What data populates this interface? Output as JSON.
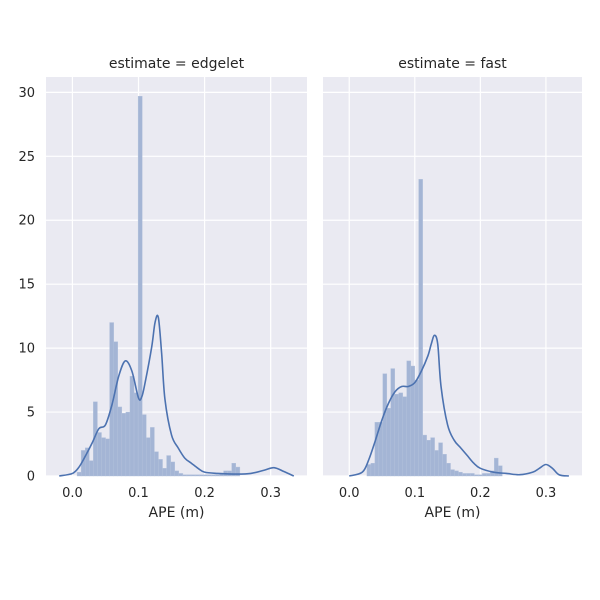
{
  "chart_data": {
    "type": "histogram_kde",
    "shared_y": true,
    "ylim": [
      0,
      31.2
    ],
    "yticks": [
      0,
      5,
      10,
      15,
      20,
      25,
      30
    ],
    "xlim": [
      -0.04,
      0.355
    ],
    "xticks": [
      0.0,
      0.1,
      0.2,
      0.3
    ],
    "xtick_labels": [
      "0.0",
      "0.1",
      "0.2",
      "0.3"
    ],
    "ytick_labels": [
      "0",
      "5",
      "10",
      "15",
      "20",
      "25",
      "30"
    ],
    "xlabel": "APE (m)",
    "ylabel": "",
    "grid": true,
    "colors": {
      "background": "#eaeaf2",
      "grid": "#ffffff",
      "bar": "#a4b5d5",
      "line": "#4c72b0"
    },
    "panels": [
      {
        "title": "estimate = edgelet",
        "bin_start": 0.007,
        "bin_width": 0.00616,
        "bars": [
          0.3,
          2.0,
          2.2,
          1.2,
          5.8,
          3.4,
          3.0,
          2.9,
          12.0,
          10.5,
          5.4,
          4.9,
          5.0,
          7.8,
          6.5,
          29.7,
          4.8,
          3.0,
          3.8,
          1.9,
          1.3,
          0.6,
          1.6,
          1.1,
          0.4,
          0.2,
          0.1,
          0.1,
          0.1,
          0.1,
          0.1,
          0.1,
          0.1,
          0.1,
          0.1,
          0.2,
          0.4,
          0.4,
          1.0,
          0.7
        ],
        "kde": {
          "x": [
            -0.02,
            0.0,
            0.01,
            0.02,
            0.03,
            0.04,
            0.05,
            0.06,
            0.07,
            0.08,
            0.09,
            0.1,
            0.105,
            0.11,
            0.12,
            0.125,
            0.13,
            0.135,
            0.14,
            0.15,
            0.16,
            0.17,
            0.18,
            0.19,
            0.2,
            0.22,
            0.25,
            0.27,
            0.29,
            0.305,
            0.32,
            0.335
          ],
          "y": [
            0.0,
            0.2,
            0.7,
            1.6,
            2.6,
            3.7,
            4.0,
            5.6,
            7.8,
            9.0,
            8.2,
            6.1,
            6.2,
            7.3,
            10.1,
            12.0,
            12.4,
            9.6,
            6.0,
            3.2,
            2.2,
            1.4,
            1.0,
            0.6,
            0.3,
            0.2,
            0.15,
            0.2,
            0.45,
            0.65,
            0.35,
            0.0
          ]
        }
      },
      {
        "title": "estimate = fast",
        "bin_start": 0.027,
        "bin_width": 0.00607,
        "bars": [
          0.9,
          1.0,
          4.2,
          4.2,
          8.0,
          5.3,
          8.4,
          6.4,
          6.5,
          6.2,
          9.0,
          8.6,
          7.5,
          23.2,
          3.2,
          2.8,
          3.0,
          2.0,
          2.6,
          1.7,
          1.0,
          0.5,
          0.4,
          0.3,
          0.2,
          0.2,
          0.2,
          0.1,
          0.1,
          0.2,
          0.2,
          0.4,
          1.4,
          0.8
        ],
        "kde": {
          "x": [
            0.0,
            0.02,
            0.03,
            0.04,
            0.05,
            0.06,
            0.07,
            0.08,
            0.09,
            0.1,
            0.11,
            0.12,
            0.125,
            0.13,
            0.135,
            0.14,
            0.15,
            0.16,
            0.17,
            0.18,
            0.19,
            0.2,
            0.22,
            0.24,
            0.26,
            0.28,
            0.29,
            0.3,
            0.31,
            0.32,
            0.335
          ],
          "y": [
            0.0,
            0.3,
            1.3,
            2.8,
            4.4,
            5.7,
            6.6,
            7.0,
            7.0,
            7.3,
            8.2,
            9.4,
            10.3,
            11.0,
            10.3,
            7.0,
            4.0,
            2.8,
            2.2,
            1.6,
            1.0,
            0.6,
            0.3,
            0.2,
            0.1,
            0.3,
            0.6,
            0.9,
            0.6,
            0.1,
            0.0
          ]
        }
      }
    ]
  }
}
